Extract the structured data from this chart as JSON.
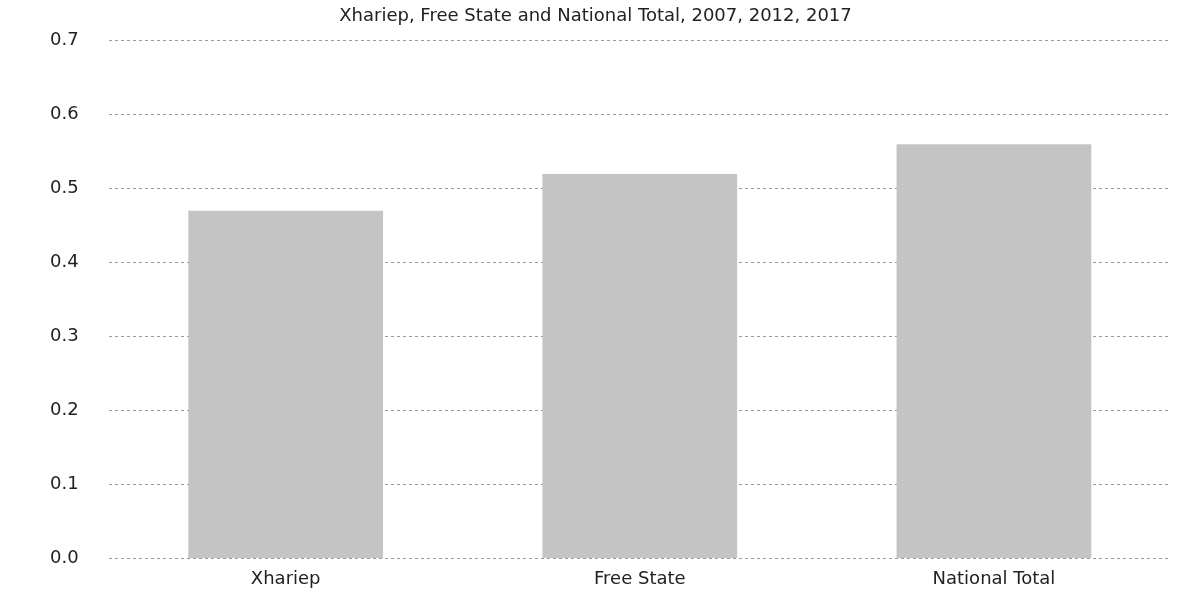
{
  "chart_data": {
    "type": "bar",
    "title": "Xhariep, Free State and National Total, 2007, 2012, 2017",
    "categories": [
      "Xhariep",
      "Free State",
      "National Total"
    ],
    "values": [
      0.47,
      0.52,
      0.56
    ],
    "color": "#c4c4c4",
    "ylim": [
      0,
      0.7
    ],
    "yticks": [
      {
        "value": 0,
        "label": "0.0"
      },
      0.1,
      0.2,
      0.3,
      0.4,
      0.5,
      0.6,
      0.7
    ],
    "grid": "y"
  }
}
